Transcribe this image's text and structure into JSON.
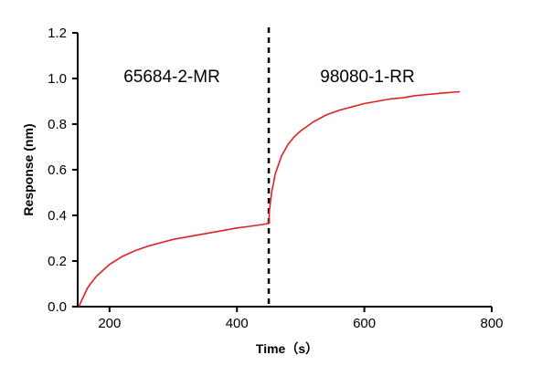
{
  "chart_data": {
    "type": "line",
    "xlabel": "Time（s）",
    "ylabel": "Response (nm)",
    "xlim": [
      150,
      800
    ],
    "ylim": [
      0,
      1.2
    ],
    "x_ticks": [
      200,
      400,
      600,
      800
    ],
    "x_tick_labels": [
      "200",
      "400",
      "600",
      "800"
    ],
    "y_ticks": [
      0.0,
      0.2,
      0.4,
      0.6,
      0.8,
      1.0,
      1.2
    ],
    "y_tick_labels": [
      "0.0",
      "0.2",
      "0.4",
      "0.6",
      "0.8",
      "1.0",
      "1.2"
    ],
    "annotations": [
      "65684-2-MR",
      "98080-1-RR"
    ],
    "divider_x": 450,
    "grid": false,
    "line_color": "#e02020",
    "series": [
      {
        "x": [
          152,
          155,
          160,
          165,
          170,
          180,
          190,
          200,
          220,
          240,
          260,
          280,
          300,
          320,
          340,
          360,
          380,
          400,
          420,
          440,
          450,
          451,
          453,
          455,
          458,
          460,
          465,
          470,
          480,
          490,
          500,
          520,
          540,
          560,
          580,
          600,
          620,
          640,
          660,
          680,
          700,
          720,
          740,
          750
        ],
        "y": [
          0.0,
          0.02,
          0.05,
          0.08,
          0.1,
          0.135,
          0.16,
          0.185,
          0.22,
          0.245,
          0.265,
          0.28,
          0.295,
          0.305,
          0.315,
          0.325,
          0.335,
          0.345,
          0.352,
          0.36,
          0.365,
          0.42,
          0.47,
          0.51,
          0.55,
          0.58,
          0.62,
          0.66,
          0.71,
          0.745,
          0.77,
          0.81,
          0.84,
          0.86,
          0.875,
          0.89,
          0.9,
          0.91,
          0.915,
          0.925,
          0.93,
          0.935,
          0.94,
          0.942
        ]
      }
    ]
  }
}
